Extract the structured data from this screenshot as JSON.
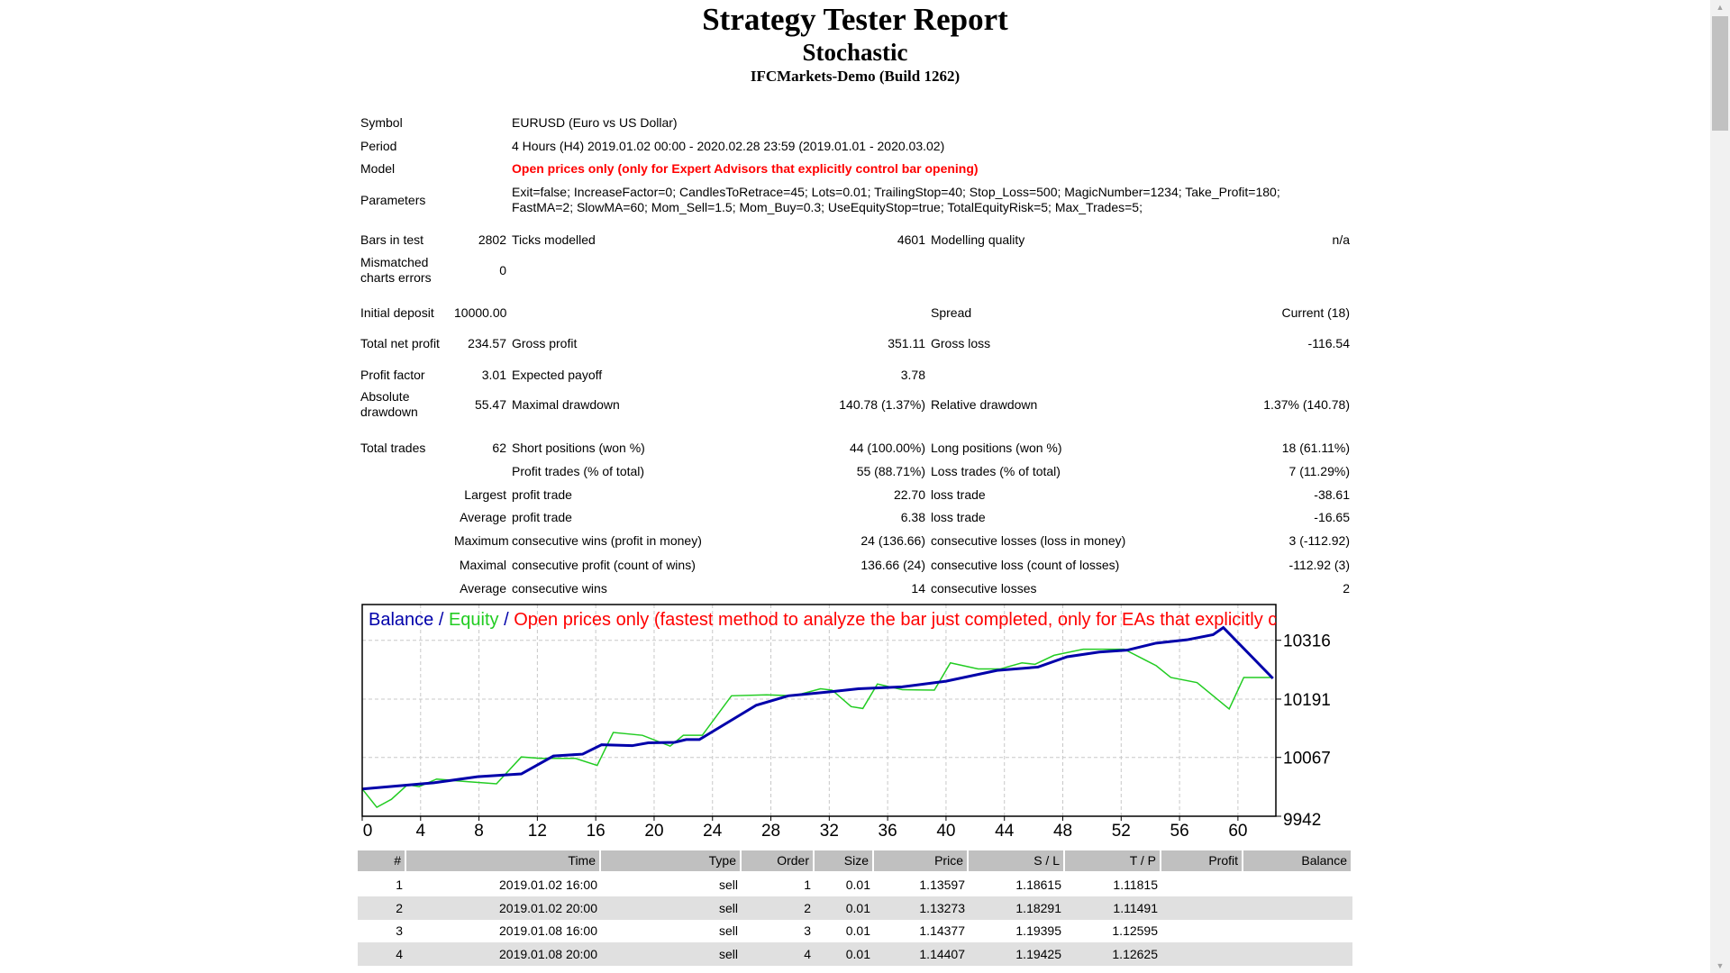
{
  "header": {
    "title": "Strategy Tester Report",
    "expert": "Stochastic",
    "server": "IFCMarkets-Demo (Build 1262)"
  },
  "summary": {
    "symbol_label": "Symbol",
    "symbol": "EURUSD (Euro vs US Dollar)",
    "period_label": "Period",
    "period": "4 Hours (H4) 2019.01.02 00:00 - 2020.02.28 23:59 (2019.01.01 - 2020.03.02)",
    "model_label": "Model",
    "model": "Open prices only (only for Expert Advisors that explicitly control bar opening)",
    "parameters_label": "Parameters",
    "parameters_line1": "Exit=false; IncreaseFactor=0; CandlesToRetrace=45; Lots=0.01; TrailingStop=40; Stop_Loss=500; MagicNumber=1234; Take_Profit=180;",
    "parameters_line2": "FastMA=2; SlowMA=60; Mom_Sell=1.5; Mom_Buy=0.3; UseEquityStop=true; TotalEquityRisk=5; Max_Trades=5;"
  },
  "stats": [
    [
      "Bars in test",
      "2802",
      "Ticks modelled",
      "4601",
      "Modelling quality",
      "n/a"
    ],
    [
      "Mismatched charts errors",
      "0",
      "",
      "",
      "",
      ""
    ],
    [
      "Initial deposit",
      "10000.00",
      "",
      "",
      "Spread",
      "Current (18)"
    ],
    [
      "Total net profit",
      "234.57",
      "Gross profit",
      "351.11",
      "Gross loss",
      "-116.54"
    ],
    [
      "Profit factor",
      "3.01",
      "Expected payoff",
      "3.78",
      "",
      ""
    ],
    [
      "Absolute drawdown",
      "55.47",
      "Maximal drawdown",
      "140.78 (1.37%)",
      "Relative drawdown",
      "1.37% (140.78)"
    ],
    [
      "Total trades",
      "62",
      "Short positions (won %)",
      "44 (100.00%)",
      "Long positions (won %)",
      "18 (61.11%)"
    ],
    [
      "",
      "",
      "Profit trades (% of total)",
      "55 (88.71%)",
      "Loss trades (% of total)",
      "7 (11.29%)"
    ],
    [
      "",
      "Largest",
      "profit trade",
      "22.70",
      "loss trade",
      "-38.61"
    ],
    [
      "",
      "Average",
      "profit trade",
      "6.38",
      "loss trade",
      "-16.65"
    ],
    [
      "",
      "Maximum",
      "consecutive wins (profit in money)",
      "24 (136.66)",
      "consecutive losses (loss in money)",
      "3 (-112.92)"
    ],
    [
      "",
      "Maximal",
      "consecutive profit (count of wins)",
      "136.66 (24)",
      "consecutive loss (count of losses)",
      "-112.92 (3)"
    ],
    [
      "",
      "Average",
      "consecutive wins",
      "14",
      "consecutive losses",
      "2"
    ]
  ],
  "chart_data": {
    "type": "line",
    "legend_text": {
      "balance": "Balance",
      "sep1": " / ",
      "equity": "Equity",
      "sep2": " / ",
      "model": "Open prices only (fastest method to analyze the bar just completed, only for EAs that explicitly control bar opening)"
    },
    "xlim": [
      0,
      62.6
    ],
    "ylim": [
      9942,
      10392
    ],
    "x_ticks": [
      0,
      4,
      8,
      12,
      16,
      20,
      24,
      28,
      32,
      36,
      40,
      44,
      48,
      52,
      56,
      60
    ],
    "y_ticks": [
      9942,
      10067,
      10191,
      10316
    ],
    "grid": true,
    "colors": {
      "balance": "#0000aa",
      "equity": "#22cc22",
      "model": "#ff0000",
      "grid": "#c8c8c8"
    },
    "series": [
      {
        "name": "Balance",
        "points": [
          [
            0,
            10000
          ],
          [
            4.9,
            10013
          ],
          [
            7.9,
            10026
          ],
          [
            10.9,
            10032
          ],
          [
            13.1,
            10070
          ],
          [
            15.1,
            10074
          ],
          [
            16.4,
            10094
          ],
          [
            18.5,
            10092
          ],
          [
            19.6,
            10098
          ],
          [
            21.4,
            10099
          ],
          [
            22.2,
            10105
          ],
          [
            23.1,
            10105
          ],
          [
            27,
            10178
          ],
          [
            29.2,
            10198
          ],
          [
            32.2,
            10207
          ],
          [
            34,
            10213
          ],
          [
            37,
            10217
          ],
          [
            40,
            10229
          ],
          [
            43.5,
            10252
          ],
          [
            46.3,
            10259
          ],
          [
            48.3,
            10281
          ],
          [
            50.5,
            10291
          ],
          [
            52.4,
            10295
          ],
          [
            54.4,
            10310
          ],
          [
            56.5,
            10317
          ],
          [
            58.3,
            10328
          ],
          [
            59,
            10343
          ],
          [
            62.4,
            10235
          ]
        ]
      },
      {
        "name": "Equity",
        "points": [
          [
            0,
            10000
          ],
          [
            1,
            9961
          ],
          [
            2,
            9978
          ],
          [
            3.1,
            10009
          ],
          [
            3.9,
            10005
          ],
          [
            5.1,
            10021
          ],
          [
            7,
            10016
          ],
          [
            9.2,
            10011
          ],
          [
            10.9,
            10068
          ],
          [
            12.2,
            10065
          ],
          [
            14.6,
            10065
          ],
          [
            16.1,
            10050
          ],
          [
            17.2,
            10120
          ],
          [
            19.2,
            10114
          ],
          [
            21.1,
            10091
          ],
          [
            22,
            10114
          ],
          [
            23.3,
            10114
          ],
          [
            25.3,
            10198
          ],
          [
            27.7,
            10200
          ],
          [
            29.6,
            10198
          ],
          [
            31.4,
            10213
          ],
          [
            32.2,
            10210
          ],
          [
            33.5,
            10175
          ],
          [
            34.3,
            10171
          ],
          [
            35.3,
            10223
          ],
          [
            37,
            10211
          ],
          [
            39.2,
            10210
          ],
          [
            40.3,
            10268
          ],
          [
            42.2,
            10255
          ],
          [
            43.7,
            10255
          ],
          [
            45.2,
            10268
          ],
          [
            46.1,
            10265
          ],
          [
            47.4,
            10284
          ],
          [
            49.4,
            10297
          ],
          [
            52.2,
            10297
          ],
          [
            54.4,
            10262
          ],
          [
            55.4,
            10237
          ],
          [
            57.2,
            10226
          ],
          [
            59.4,
            10170
          ],
          [
            60.4,
            10237
          ],
          [
            62.4,
            10237
          ]
        ]
      }
    ]
  },
  "trades": {
    "columns": [
      "#",
      "Time",
      "Type",
      "Order",
      "Size",
      "Price",
      "S / L",
      "T / P",
      "Profit",
      "Balance"
    ],
    "rows": [
      [
        "1",
        "2019.01.02 16:00",
        "sell",
        "1",
        "0.01",
        "1.13597",
        "1.18615",
        "1.11815",
        "",
        ""
      ],
      [
        "2",
        "2019.01.02 20:00",
        "sell",
        "2",
        "0.01",
        "1.13273",
        "1.18291",
        "1.11491",
        "",
        ""
      ],
      [
        "3",
        "2019.01.08 16:00",
        "sell",
        "3",
        "0.01",
        "1.14377",
        "1.19395",
        "1.12595",
        "",
        ""
      ],
      [
        "4",
        "2019.01.08 20:00",
        "sell",
        "4",
        "0.01",
        "1.14407",
        "1.19425",
        "1.12625",
        "",
        ""
      ]
    ]
  },
  "scrollbar": {
    "up_icon": "triangle-up",
    "down_icon": "triangle-down"
  }
}
